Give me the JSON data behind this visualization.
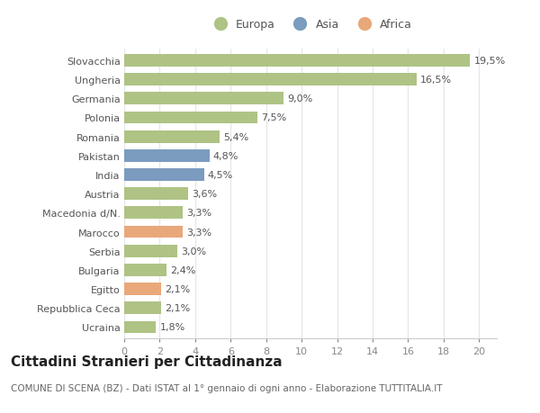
{
  "categories": [
    "Slovacchia",
    "Ungheria",
    "Germania",
    "Polonia",
    "Romania",
    "Pakistan",
    "India",
    "Austria",
    "Macedonia d/N.",
    "Marocco",
    "Serbia",
    "Bulgaria",
    "Egitto",
    "Repubblica Ceca",
    "Ucraina"
  ],
  "values": [
    19.5,
    16.5,
    9.0,
    7.5,
    5.4,
    4.8,
    4.5,
    3.6,
    3.3,
    3.3,
    3.0,
    2.4,
    2.1,
    2.1,
    1.8
  ],
  "labels": [
    "19,5%",
    "16,5%",
    "9,0%",
    "7,5%",
    "5,4%",
    "4,8%",
    "4,5%",
    "3,6%",
    "3,3%",
    "3,3%",
    "3,0%",
    "2,4%",
    "2,1%",
    "2,1%",
    "1,8%"
  ],
  "colors": [
    "#aec384",
    "#aec384",
    "#aec384",
    "#aec384",
    "#aec384",
    "#7b9bbf",
    "#7b9bbf",
    "#aec384",
    "#aec384",
    "#e8a87a",
    "#aec384",
    "#aec384",
    "#e8a87a",
    "#aec384",
    "#aec384"
  ],
  "legend": [
    {
      "label": "Europa",
      "color": "#aec384"
    },
    {
      "label": "Asia",
      "color": "#7b9bbf"
    },
    {
      "label": "Africa",
      "color": "#e8a87a"
    }
  ],
  "xlim": [
    0,
    21
  ],
  "xticks": [
    0,
    2,
    4,
    6,
    8,
    10,
    12,
    14,
    16,
    18,
    20
  ],
  "title": "Cittadini Stranieri per Cittadinanza",
  "subtitle": "COMUNE DI SCENA (BZ) - Dati ISTAT al 1° gennaio di ogni anno - Elaborazione TUTTITALIA.IT",
  "bg_color": "#ffffff",
  "grid_color": "#e8e8e8",
  "bar_height": 0.65,
  "label_fontsize": 8.0,
  "ytick_fontsize": 8.0,
  "xtick_fontsize": 8.0,
  "title_fontsize": 11,
  "subtitle_fontsize": 7.5,
  "legend_fontsize": 9.0
}
